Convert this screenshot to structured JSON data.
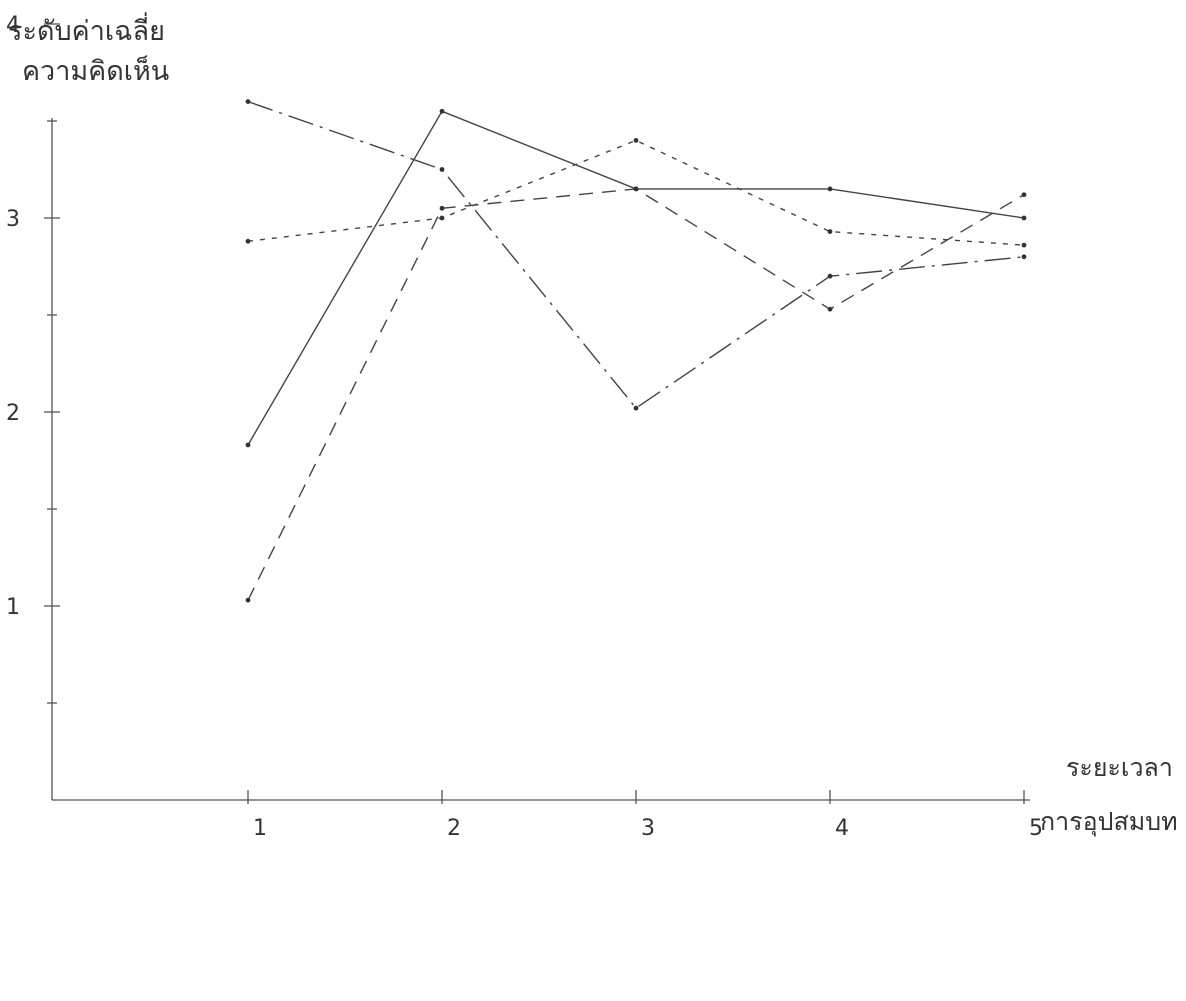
{
  "chart_data": {
    "type": "line",
    "ylabel": [
      "ระดับค่าเฉลี่ย",
      "ความคิดเห็น"
    ],
    "xlabel": [
      "ระยะเวลา",
      "การอุปสมบท"
    ],
    "categories": [
      "1",
      "2",
      "3",
      "4",
      "5"
    ],
    "x": [
      1,
      2,
      3,
      4,
      5
    ],
    "yticks": [
      "1",
      "2",
      "3",
      "4"
    ],
    "ylim": [
      0,
      4.5
    ],
    "grid": false,
    "legend": "none",
    "series": [
      {
        "values": [
          1.83,
          3.55,
          3.15,
          3.15,
          3.0
        ],
        "dash": ""
      },
      {
        "values": [
          1.03,
          3.05,
          3.15,
          2.53,
          3.12
        ],
        "dash": "14 9"
      },
      {
        "values": [
          3.6,
          3.25,
          2.02,
          2.7,
          2.8
        ],
        "dash": "26 7 3 7"
      },
      {
        "values": [
          2.88,
          3.0,
          3.4,
          2.93,
          2.86
        ],
        "dash": "5 7"
      }
    ]
  }
}
